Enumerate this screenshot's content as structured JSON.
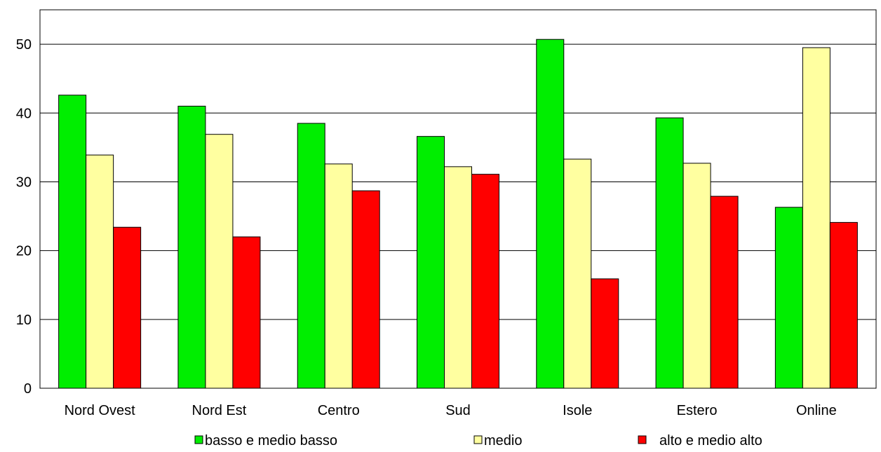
{
  "chart_data": {
    "type": "bar",
    "categories": [
      "Nord Ovest",
      "Nord Est",
      "Centro",
      "Sud",
      "Isole",
      "Estero",
      "Online"
    ],
    "series": [
      {
        "name": "basso e medio basso",
        "color": "#00ee00",
        "values": [
          42.6,
          41.0,
          38.5,
          36.6,
          50.7,
          39.3,
          26.3
        ]
      },
      {
        "name": "medio",
        "color": "#ffffa0",
        "values": [
          33.9,
          36.9,
          32.6,
          32.2,
          33.3,
          32.7,
          49.5
        ]
      },
      {
        "name": "alto e medio alto",
        "color": "#ff0000",
        "values": [
          23.4,
          22.0,
          28.7,
          31.1,
          15.9,
          27.9,
          24.1
        ]
      }
    ],
    "ylim": [
      0,
      55
    ],
    "yticks": [
      0,
      10,
      20,
      30,
      40,
      50
    ],
    "grid": true,
    "legend_position": "bottom",
    "title": "",
    "xlabel": "",
    "ylabel": ""
  }
}
